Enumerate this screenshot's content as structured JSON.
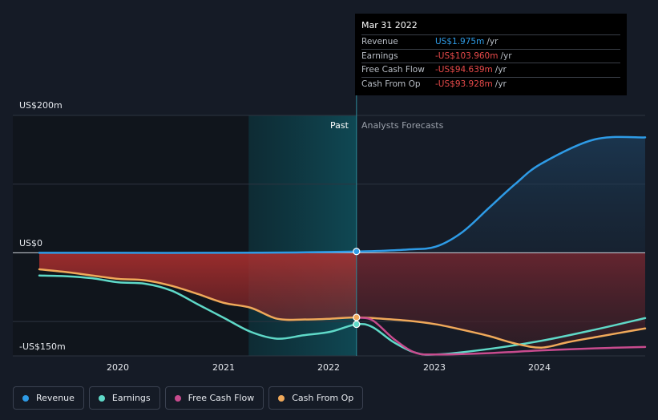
{
  "y_labels": {
    "top": "US$200m",
    "zero": "US$0",
    "bottom": "-US$150m"
  },
  "regions": {
    "past": "Past",
    "forecast": "Analysts Forecasts"
  },
  "x_ticks": [
    "2020",
    "2021",
    "2022",
    "2023",
    "2024"
  ],
  "tooltip": {
    "date": "Mar 31 2022",
    "rows": [
      {
        "name": "Revenue",
        "value": "US$1.975m",
        "unit": "/yr",
        "color": "#2e9be6"
      },
      {
        "name": "Earnings",
        "value": "-US$103.960m",
        "unit": "/yr",
        "color": "#e84a4a"
      },
      {
        "name": "Free Cash Flow",
        "value": "-US$94.639m",
        "unit": "/yr",
        "color": "#e84a4a"
      },
      {
        "name": "Cash From Op",
        "value": "-US$93.928m",
        "unit": "/yr",
        "color": "#e84a4a"
      }
    ]
  },
  "legend": [
    {
      "label": "Revenue",
      "color": "#2e9be6"
    },
    {
      "label": "Earnings",
      "color": "#5fd9c8"
    },
    {
      "label": "Free Cash Flow",
      "color": "#c84b8e"
    },
    {
      "label": "Cash From Op",
      "color": "#f0a95a"
    }
  ],
  "chart_data": {
    "type": "line",
    "ylim": [
      -150,
      200
    ],
    "xlim": [
      2019.25,
      2024.98
    ],
    "past_end": 2022.25,
    "highlight_start": 2021.23,
    "series": [
      {
        "name": "Revenue",
        "color": "#2e9be6",
        "x": [
          2019.25,
          2020.0,
          2021.0,
          2021.5,
          2022.0,
          2022.25,
          2022.5,
          2022.75,
          2023.0,
          2023.25,
          2023.5,
          2023.75,
          2024.0,
          2024.5,
          2024.98
        ],
        "y": [
          0,
          0,
          0,
          0.3,
          1.2,
          1.975,
          3,
          5,
          9,
          30,
          65,
          100,
          130,
          165,
          168
        ]
      },
      {
        "name": "Earnings",
        "color": "#5fd9c8",
        "x": [
          2019.25,
          2019.5,
          2019.75,
          2020.0,
          2020.25,
          2020.5,
          2020.75,
          2021.0,
          2021.25,
          2021.5,
          2021.75,
          2022.0,
          2022.25,
          2022.4,
          2022.6,
          2022.8,
          2023.0,
          2023.5,
          2024.0,
          2024.5,
          2024.98
        ],
        "y": [
          -33,
          -34,
          -37,
          -43,
          -45,
          -55,
          -75,
          -95,
          -115,
          -125,
          -120,
          -115,
          -104,
          -108,
          -130,
          -145,
          -148,
          -140,
          -128,
          -112,
          -95
        ]
      },
      {
        "name": "Free Cash Flow",
        "color": "#c84b8e",
        "x": [
          2022.25,
          2022.4,
          2022.6,
          2022.8,
          2023.0,
          2023.5,
          2024.0,
          2024.5,
          2024.98
        ],
        "y": [
          -94.6,
          -98,
          -125,
          -145,
          -148,
          -146,
          -142,
          -139,
          -137
        ]
      },
      {
        "name": "Cash From Op",
        "color": "#f0a95a",
        "x": [
          2019.25,
          2019.5,
          2019.75,
          2020.0,
          2020.25,
          2020.5,
          2020.75,
          2021.0,
          2021.25,
          2021.5,
          2021.75,
          2022.0,
          2022.25,
          2022.5,
          2022.75,
          2023.0,
          2023.25,
          2023.5,
          2023.75,
          2024.0,
          2024.25,
          2024.5,
          2024.98
        ],
        "y": [
          -24,
          -28,
          -33,
          -38,
          -40,
          -48,
          -60,
          -73,
          -80,
          -96,
          -97,
          -96,
          -94,
          -96,
          -99,
          -104,
          -112,
          -121,
          -132,
          -138,
          -130,
          -123,
          -110
        ]
      }
    ]
  }
}
